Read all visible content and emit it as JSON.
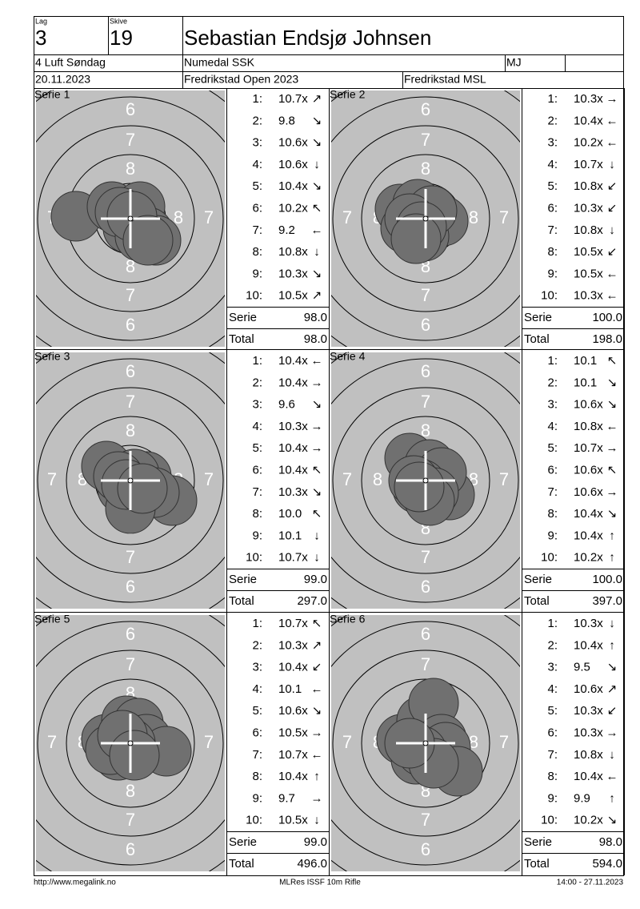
{
  "header": {
    "lag_label": "Lag",
    "lag": "3",
    "skive_label": "Skive",
    "skive": "19",
    "name": "Sebastian Endsjø Johnsen",
    "class": "4 Luft Søndag",
    "club": "Numedal SSK",
    "code": "MJ",
    "date": "20.11.2023",
    "competition": "Fredrikstad Open 2023",
    "venue": "Fredrikstad MSL"
  },
  "target_labels": {
    "ring6": "6",
    "ring7": "7",
    "ring8": "8"
  },
  "series": [
    {
      "title": "Serie 1",
      "shots": [
        [
          "1:",
          "10.7x",
          "↗"
        ],
        [
          "2:",
          "9.8",
          "↘"
        ],
        [
          "3:",
          "10.6x",
          "↘"
        ],
        [
          "4:",
          "10.6x",
          "↓"
        ],
        [
          "5:",
          "10.4x",
          "↘"
        ],
        [
          "6:",
          "10.2x",
          "↖"
        ],
        [
          "7:",
          "9.2",
          "←"
        ],
        [
          "8:",
          "10.8x",
          "↓"
        ],
        [
          "9:",
          "10.3x",
          "↘"
        ],
        [
          "10:",
          "10.5x",
          "↗"
        ]
      ],
      "serie_label": "Serie",
      "serie": "98.0",
      "total_label": "Total",
      "total": "98.0"
    },
    {
      "title": "Serie 2",
      "shots": [
        [
          "1:",
          "10.3x",
          "→"
        ],
        [
          "2:",
          "10.4x",
          "←"
        ],
        [
          "3:",
          "10.2x",
          "←"
        ],
        [
          "4:",
          "10.7x",
          "↓"
        ],
        [
          "5:",
          "10.8x",
          "↙"
        ],
        [
          "6:",
          "10.3x",
          "↙"
        ],
        [
          "7:",
          "10.8x",
          "↓"
        ],
        [
          "8:",
          "10.5x",
          "↙"
        ],
        [
          "9:",
          "10.5x",
          "←"
        ],
        [
          "10:",
          "10.3x",
          "←"
        ]
      ],
      "serie_label": "Serie",
      "serie": "100.0",
      "total_label": "Total",
      "total": "198.0"
    },
    {
      "title": "Serie 3",
      "shots": [
        [
          "1:",
          "10.4x",
          "←"
        ],
        [
          "2:",
          "10.4x",
          "→"
        ],
        [
          "3:",
          "9.6",
          "↘"
        ],
        [
          "4:",
          "10.3x",
          "→"
        ],
        [
          "5:",
          "10.4x",
          "→"
        ],
        [
          "6:",
          "10.4x",
          "↖"
        ],
        [
          "7:",
          "10.3x",
          "↘"
        ],
        [
          "8:",
          "10.0",
          "↖"
        ],
        [
          "9:",
          "10.1",
          "↓"
        ],
        [
          "10:",
          "10.7x",
          "↓"
        ]
      ],
      "serie_label": "Serie",
      "serie": "99.0",
      "total_label": "Total",
      "total": "297.0"
    },
    {
      "title": "Serie 4",
      "shots": [
        [
          "1:",
          "10.1",
          "↖"
        ],
        [
          "2:",
          "10.1",
          "↘"
        ],
        [
          "3:",
          "10.6x",
          "↘"
        ],
        [
          "4:",
          "10.8x",
          "←"
        ],
        [
          "5:",
          "10.7x",
          "→"
        ],
        [
          "6:",
          "10.6x",
          "↖"
        ],
        [
          "7:",
          "10.6x",
          "→"
        ],
        [
          "8:",
          "10.4x",
          "↘"
        ],
        [
          "9:",
          "10.4x",
          "↑"
        ],
        [
          "10:",
          "10.2x",
          "↑"
        ]
      ],
      "serie_label": "Serie",
      "serie": "100.0",
      "total_label": "Total",
      "total": "397.0"
    },
    {
      "title": "Serie 5",
      "shots": [
        [
          "1:",
          "10.7x",
          "↖"
        ],
        [
          "2:",
          "10.3x",
          "↗"
        ],
        [
          "3:",
          "10.4x",
          "↙"
        ],
        [
          "4:",
          "10.1",
          "←"
        ],
        [
          "5:",
          "10.6x",
          "↘"
        ],
        [
          "6:",
          "10.5x",
          "→"
        ],
        [
          "7:",
          "10.7x",
          "←"
        ],
        [
          "8:",
          "10.4x",
          "↑"
        ],
        [
          "9:",
          "9.7",
          "→"
        ],
        [
          "10:",
          "10.5x",
          "↓"
        ]
      ],
      "serie_label": "Serie",
      "serie": "99.0",
      "total_label": "Total",
      "total": "496.0"
    },
    {
      "title": "Serie 6",
      "shots": [
        [
          "1:",
          "10.3x",
          "↓"
        ],
        [
          "2:",
          "10.4x",
          "↑"
        ],
        [
          "3:",
          "9.5",
          "↘"
        ],
        [
          "4:",
          "10.6x",
          "↗"
        ],
        [
          "5:",
          "10.3x",
          "↙"
        ],
        [
          "6:",
          "10.3x",
          "→"
        ],
        [
          "7:",
          "10.8x",
          "↓"
        ],
        [
          "8:",
          "10.4x",
          "←"
        ],
        [
          "9:",
          "9.9",
          "↑"
        ],
        [
          "10:",
          "10.2x",
          "↘"
        ]
      ],
      "serie_label": "Serie",
      "serie": "98.0",
      "total_label": "Total",
      "total": "594.0"
    }
  ],
  "footer": {
    "left": "http://www.megalink.no",
    "center": "MLRes ISSF 10m Rifle",
    "right": "14:00 - 27.11.2023"
  }
}
